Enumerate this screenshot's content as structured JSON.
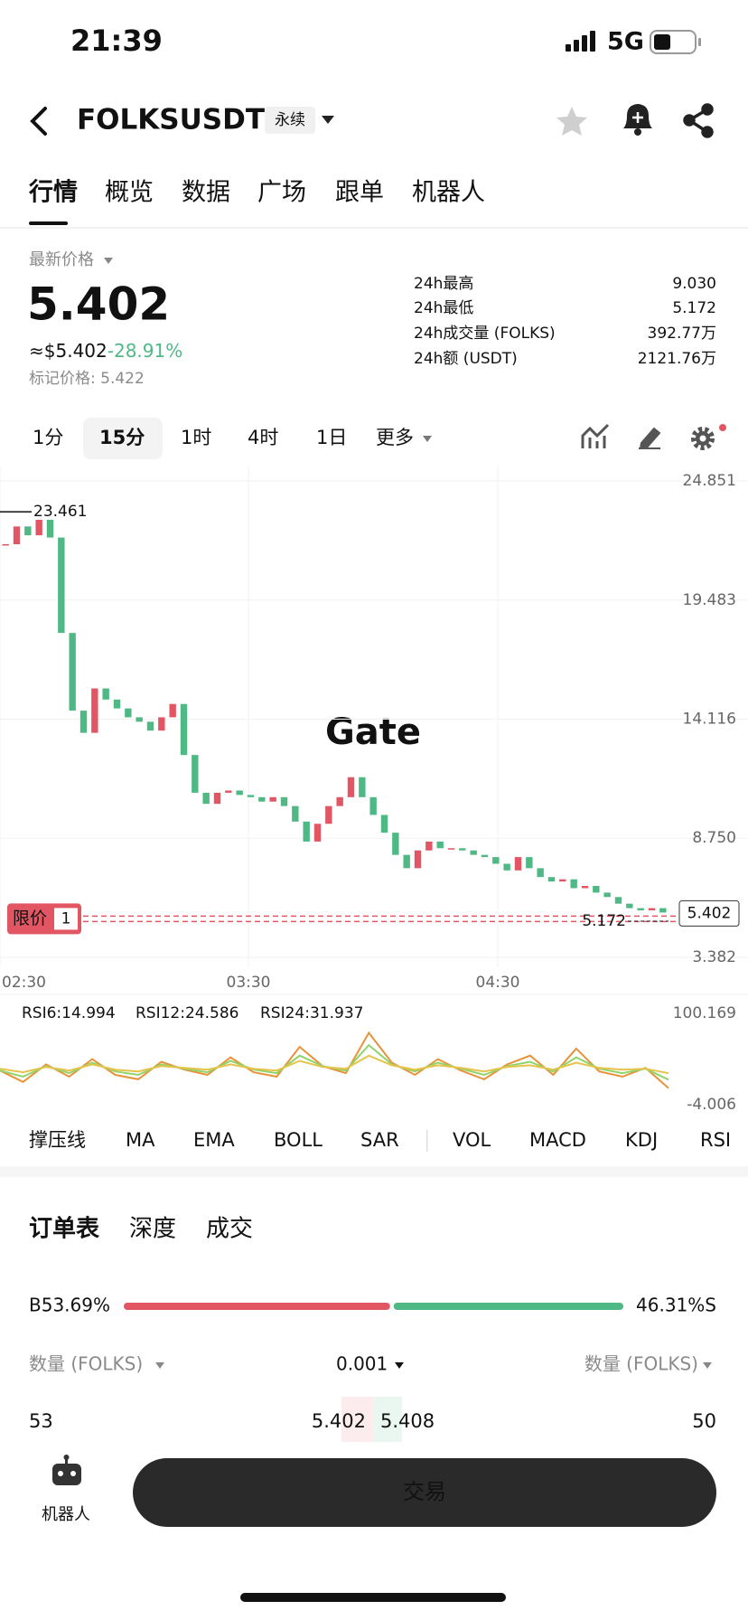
{
  "status_bar": {
    "time": "21:39",
    "network": "5G"
  },
  "header": {
    "symbol": "FOLKSUSDT",
    "badge": "永续"
  },
  "tabs": [
    "行情",
    "概览",
    "数据",
    "广场",
    "跟单",
    "机器人"
  ],
  "price": {
    "label": "最新价格",
    "last": "5.402",
    "usd": "≈$5.402",
    "change": "-28.91%",
    "mark": "标记价格: 5.422"
  },
  "stats": [
    {
      "label": "24h最高",
      "value": "9.030"
    },
    {
      "label": "24h最低",
      "value": "5.172"
    },
    {
      "label": "24h成交量 (FOLKS)",
      "value": "392.77万"
    },
    {
      "label": "24h额 (USDT)",
      "value": "2121.76万"
    }
  ],
  "intervals": [
    "1分",
    "15分",
    "1时",
    "4时",
    "1日",
    "更多"
  ],
  "chart_data": [
    {
      "type": "candlestick",
      "up_color": "#e25563",
      "down_color": "#4fb985",
      "closes": [
        22.0,
        22.8,
        22.4,
        23.1,
        22.3,
        18.0,
        14.5,
        13.5,
        15.5,
        15.0,
        14.6,
        14.2,
        14.0,
        13.6,
        14.2,
        14.8,
        12.5,
        10.8,
        10.3,
        10.8,
        10.9,
        10.7,
        10.6,
        10.4,
        10.6,
        10.2,
        9.5,
        8.6,
        9.4,
        10.2,
        10.6,
        11.5,
        10.6,
        9.8,
        9.0,
        8.0,
        7.4,
        8.2,
        8.6,
        8.3,
        8.3,
        8.2,
        8.0,
        7.9,
        7.6,
        7.3,
        7.9,
        7.4,
        7.0,
        6.8,
        6.9,
        6.5,
        6.6,
        6.3,
        6.1,
        5.8,
        5.6,
        5.5,
        5.6,
        5.402
      ],
      "ylim": [
        2.934,
        25.543
      ],
      "yticks": [
        24.851,
        19.483,
        14.116,
        {
          "value": 8.75,
          "label": "8.750"
        },
        3.382
      ],
      "time_labels": [
        "02:30",
        "03:30",
        "04:30"
      ],
      "high_marker": 23.461,
      "low_marker": 5.172,
      "last_price": 5.402,
      "limit_tag": {
        "label": "限价",
        "count": "1"
      },
      "watermark": "Gate",
      "grid": true
    },
    {
      "type": "line",
      "ylim": [
        -4.006,
        100.169
      ],
      "yticks": [
        100.169,
        -4.006
      ],
      "series": [
        {
          "name": "RSI6:14.994",
          "color": "#e8923a",
          "values": [
            35,
            22,
            42,
            28,
            48,
            30,
            25,
            45,
            36,
            30,
            50,
            33,
            28,
            62,
            40,
            32,
            78,
            44,
            30,
            48,
            35,
            25,
            42,
            52,
            30,
            60,
            34,
            28,
            38,
            14.994
          ]
        },
        {
          "name": "RSI12:24.586",
          "color": "#8fd46a",
          "values": [
            35,
            28,
            40,
            32,
            44,
            34,
            30,
            42,
            37,
            33,
            46,
            36,
            32,
            52,
            40,
            35,
            64,
            42,
            34,
            44,
            37,
            30,
            40,
            45,
            34,
            50,
            37,
            32,
            37,
            24.586
          ]
        },
        {
          "name": "RSI24:31.937",
          "color": "#e6c34a",
          "values": [
            37,
            33,
            39,
            35,
            42,
            36,
            34,
            40,
            38,
            36,
            42,
            37,
            35,
            46,
            39,
            37,
            52,
            41,
            36,
            41,
            38,
            34,
            39,
            41,
            36,
            44,
            38,
            36,
            37,
            31.937
          ]
        }
      ]
    }
  ],
  "indicators": [
    "撑压线",
    "MA",
    "EMA",
    "BOLL",
    "SAR",
    "VOL",
    "MACD",
    "KDJ",
    "RSI"
  ],
  "order_tabs": [
    "订单表",
    "深度",
    "成交"
  ],
  "ratio": {
    "buy": 53.69,
    "buy_label": "B53.69%",
    "sell": 46.31,
    "sell_label": "46.31%S"
  },
  "book_header": {
    "left": "数量 (FOLKS)",
    "precision": "0.001",
    "right": "数量 (FOLKS)"
  },
  "book_row": {
    "bid_qty": "53",
    "bid": "5.402",
    "ask": "5.408",
    "ask_qty": "50"
  },
  "bottom": {
    "robot": "机器人",
    "trade": "交易"
  }
}
